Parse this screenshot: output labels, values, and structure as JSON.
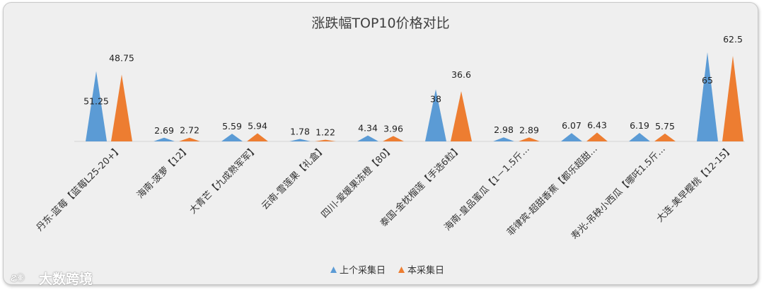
{
  "chart_data": {
    "type": "bar",
    "title": "涨跌幅TOP10价格对比",
    "categories": [
      "丹东-蓝莓【蓝莓L25-20+】",
      "海南-菠萝【12】",
      "大青芒【九成熟军军】",
      "云南-雪莲果【礼盒】",
      "四川-爱媛果冻橙【80】",
      "泰国-金枕榴莲【手选6粒】",
      "海南-皇品蜜瓜【1－1.5斤…",
      "菲律宾-超甜香蕉【都乐超甜…",
      "寿光-吊秧小西瓜【哪吒1.5斤…",
      "大连-美早樱桃【12-15】"
    ],
    "series": [
      {
        "name": "上个采集日",
        "color": "#5b9bd5",
        "values": [
          51.25,
          2.69,
          5.59,
          1.78,
          4.34,
          38,
          2.98,
          6.07,
          6.19,
          65
        ],
        "labels": [
          "51.25",
          "2.69",
          "5.59",
          "1.78",
          "4.34",
          "38",
          "2.98",
          "6.07",
          "6.19",
          "65"
        ]
      },
      {
        "name": "本采集日",
        "color": "#ed7d31",
        "values": [
          48.75,
          2.72,
          5.94,
          1.22,
          3.96,
          36.6,
          2.89,
          6.43,
          5.75,
          62.5
        ],
        "labels": [
          "48.75",
          "2.72",
          "5.94",
          "1.22",
          "3.96",
          "36.6",
          "2.89",
          "6.43",
          "5.75",
          "62.5"
        ]
      }
    ],
    "ylim": [
      0,
      65
    ],
    "grid": false,
    "legend_position": "bottom"
  },
  "watermark": {
    "icon": "logo-icon",
    "text": "大数跨境"
  }
}
